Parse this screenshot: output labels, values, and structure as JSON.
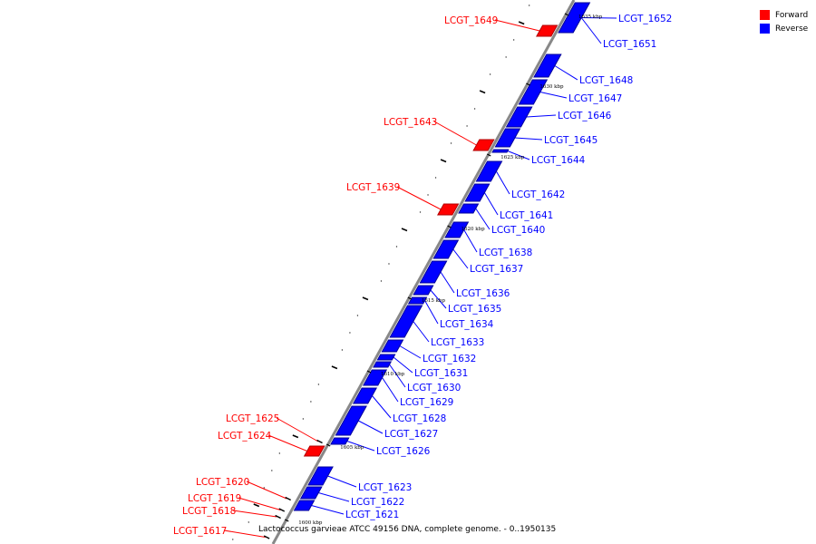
{
  "caption": "Lactococcus garvieae ATCC 49156 DNA, complete genome. - 0..1950135",
  "legend": {
    "forward": {
      "label": "Forward",
      "color": "#ff0000"
    },
    "reverse": {
      "label": "Reverse",
      "color": "#0000ff"
    }
  },
  "scale_ticks": [
    "1635 kbp",
    "1630 kbp",
    "1625 kbp",
    "1620 kbp",
    "1615 kbp",
    "1610 kbp",
    "1605 kbp",
    "1600 kbp"
  ],
  "genes": [
    {
      "id": "LCGT_1652",
      "strand": "reverse"
    },
    {
      "id": "LCGT_1651",
      "strand": "reverse"
    },
    {
      "id": "LCGT_1649",
      "strand": "forward"
    },
    {
      "id": "LCGT_1648",
      "strand": "reverse"
    },
    {
      "id": "LCGT_1647",
      "strand": "reverse"
    },
    {
      "id": "LCGT_1646",
      "strand": "reverse"
    },
    {
      "id": "LCGT_1645",
      "strand": "reverse"
    },
    {
      "id": "LCGT_1644",
      "strand": "reverse"
    },
    {
      "id": "LCGT_1643",
      "strand": "forward"
    },
    {
      "id": "LCGT_1642",
      "strand": "reverse"
    },
    {
      "id": "LCGT_1641",
      "strand": "reverse"
    },
    {
      "id": "LCGT_1640",
      "strand": "reverse"
    },
    {
      "id": "LCGT_1639",
      "strand": "forward"
    },
    {
      "id": "LCGT_1638",
      "strand": "reverse"
    },
    {
      "id": "LCGT_1637",
      "strand": "reverse"
    },
    {
      "id": "LCGT_1636",
      "strand": "reverse"
    },
    {
      "id": "LCGT_1635",
      "strand": "reverse"
    },
    {
      "id": "LCGT_1634",
      "strand": "reverse"
    },
    {
      "id": "LCGT_1633",
      "strand": "reverse"
    },
    {
      "id": "LCGT_1632",
      "strand": "reverse"
    },
    {
      "id": "LCGT_1631",
      "strand": "reverse"
    },
    {
      "id": "LCGT_1630",
      "strand": "reverse"
    },
    {
      "id": "LCGT_1629",
      "strand": "reverse"
    },
    {
      "id": "LCGT_1628",
      "strand": "reverse"
    },
    {
      "id": "LCGT_1627",
      "strand": "reverse"
    },
    {
      "id": "LCGT_1626",
      "strand": "reverse"
    },
    {
      "id": "LCGT_1625",
      "strand": "forward"
    },
    {
      "id": "LCGT_1624",
      "strand": "forward"
    },
    {
      "id": "LCGT_1623",
      "strand": "reverse"
    },
    {
      "id": "LCGT_1622",
      "strand": "reverse"
    },
    {
      "id": "LCGT_1621",
      "strand": "reverse"
    },
    {
      "id": "LCGT_1620",
      "strand": "forward"
    },
    {
      "id": "LCGT_1619",
      "strand": "forward"
    },
    {
      "id": "LCGT_1618",
      "strand": "forward"
    },
    {
      "id": "LCGT_1617",
      "strand": "forward"
    }
  ]
}
